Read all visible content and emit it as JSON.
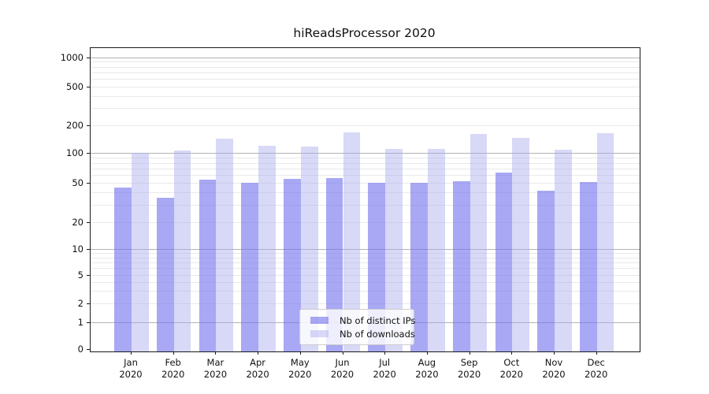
{
  "chart_data": {
    "type": "bar",
    "title": "hiReadsProcessor 2020",
    "categories": [
      "Jan",
      "Feb",
      "Mar",
      "Apr",
      "May",
      "Jun",
      "Jul",
      "Aug",
      "Sep",
      "Oct",
      "Nov",
      "Dec"
    ],
    "x_tick_line2": "2020",
    "series": [
      {
        "name": "Nb of distinct IPs",
        "color": "rgba(115,115,237,0.62)",
        "approx_hex": "#a8a8f4",
        "values": [
          46,
          36,
          55,
          51,
          56,
          57,
          51,
          51,
          53,
          65,
          42,
          52
        ]
      },
      {
        "name": "Nb of downloads",
        "color": "rgba(168,168,237,0.45)",
        "approx_hex": "#d8d8f7",
        "values": [
          103,
          110,
          148,
          122,
          120,
          172,
          114,
          114,
          164,
          150,
          111,
          169
        ]
      }
    ],
    "yscale": "log-like (asinh), includes 0",
    "ytick_values": [
      1000,
      500,
      200,
      100,
      50,
      20,
      10,
      5,
      2,
      1,
      0
    ],
    "ylim": [
      0,
      1300
    ],
    "grid": true,
    "legend_position": "lower center",
    "scale_anchors": [
      [
        0,
        0.005
      ],
      [
        1,
        0.0941
      ],
      [
        2,
        0.1548
      ],
      [
        5,
        0.2502
      ],
      [
        10,
        0.335
      ],
      [
        20,
        0.4234
      ],
      [
        50,
        0.5534
      ],
      [
        100,
        0.6507
      ],
      [
        200,
        0.7425
      ],
      [
        500,
        0.87
      ],
      [
        1000,
        0.967
      ]
    ],
    "colors": {
      "major_grid": "#b3b3b3",
      "minor_grid": "#e9e9e9",
      "frame": "#1a1a1a",
      "text": "#111111"
    }
  }
}
